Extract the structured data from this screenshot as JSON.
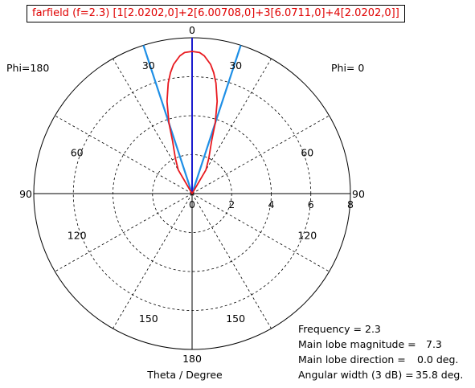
{
  "chart_data": {
    "type": "polar",
    "title": "farfield (f=2.3) [1[2.0202,0]+2[6.00708,0]+3[6.0711,0]+4[2.0202,0]]",
    "xlabel": "Theta / Degree",
    "radial_range": [
      0,
      8
    ],
    "radial_ticks": [
      "0",
      "2",
      "4",
      "6",
      "8"
    ],
    "angle_ticks": [
      {
        "deg": 0,
        "label": "0"
      },
      {
        "deg": 30,
        "label": "30"
      },
      {
        "deg": 60,
        "label": "60"
      },
      {
        "deg": 90,
        "label": "90"
      },
      {
        "deg": 120,
        "label": "120"
      },
      {
        "deg": 150,
        "label": "150"
      },
      {
        "deg": 180,
        "label": "180"
      },
      {
        "deg": -30,
        "label": "30"
      },
      {
        "deg": -60,
        "label": "60"
      },
      {
        "deg": -90,
        "label": "90"
      },
      {
        "deg": -120,
        "label": "120"
      },
      {
        "deg": -150,
        "label": "150"
      }
    ],
    "side_labels": {
      "left": "Phi=180",
      "right": "Phi=  0"
    },
    "grid": true,
    "series": [
      {
        "color": "#e8191f",
        "theta": [
          -30,
          -25,
          -20,
          -17.9,
          -15,
          -12,
          -10,
          -8,
          -5,
          -3,
          0,
          3,
          5,
          8,
          10,
          12,
          15,
          17.9,
          20,
          25,
          30
        ],
        "r": [
          1.4,
          2.0,
          2.9,
          3.8,
          4.9,
          5.8,
          6.3,
          6.7,
          7.1,
          7.25,
          7.3,
          7.25,
          7.1,
          6.7,
          6.3,
          5.8,
          4.9,
          3.8,
          2.9,
          2.0,
          1.4
        ]
      }
    ],
    "main_lobe_direction_deg": 0.0,
    "beamwidth_lines_deg": [
      -17.9,
      17.9
    ],
    "colors": {
      "pattern": "#e8191f",
      "main_lobe": "#1a1acd",
      "beamwidth": "#1e8fe6"
    }
  },
  "info": {
    "frequency": "Frequency = 2.3",
    "magnitude_label": "Main lobe magnitude =",
    "magnitude_value": "7.3",
    "direction_label": "Main lobe direction =",
    "direction_value": "0.0 deg.",
    "width_label": "Angular width (3 dB) =",
    "width_value": "35.8 deg."
  }
}
